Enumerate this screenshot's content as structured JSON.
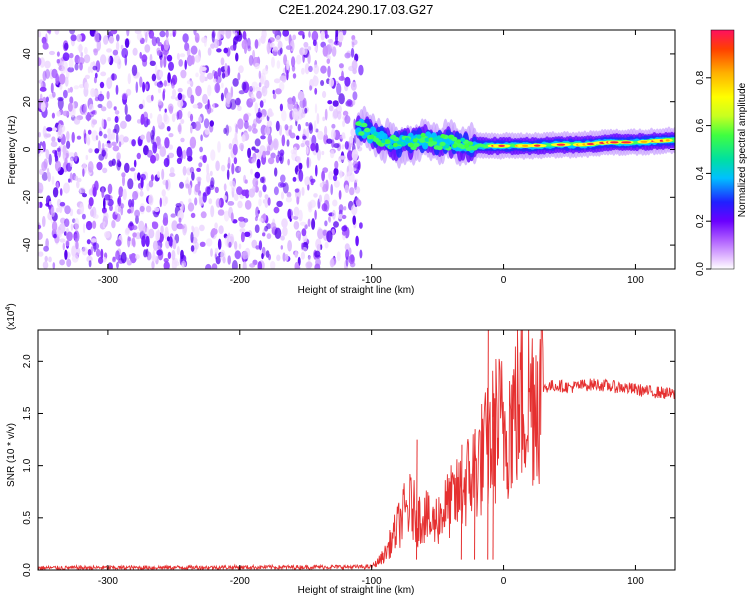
{
  "figure_title": "C2E1.2024.290.17.03.G27",
  "colors": {
    "signal_line": "#e53030",
    "axis": "#000000",
    "background": "#ffffff",
    "colormap": [
      "#ffffff",
      "#e8c8ff",
      "#b060ff",
      "#6a00ff",
      "#2020ff",
      "#00c0ff",
      "#00e0a0",
      "#40ff40",
      "#c8ff20",
      "#ffff00",
      "#ffb000",
      "#ff4000",
      "#ff1060"
    ]
  },
  "chart_data": [
    {
      "type": "heatmap",
      "name": "spectrogram",
      "title": "C2E1.2024.290.17.03.G27",
      "xlabel": "Height of straight line (km)",
      "ylabel": "Frequency (Hz)",
      "xlim": [
        -353,
        130
      ],
      "ylim": [
        -50,
        50
      ],
      "xticks": [
        -300,
        -200,
        -100,
        0,
        100
      ],
      "xtick_labels": [
        "-300",
        "-200",
        "-100",
        "0",
        "100"
      ],
      "yticks": [
        -40,
        -20,
        0,
        20,
        40
      ],
      "ytick_labels": [
        "-40",
        "-20",
        "0",
        "20",
        "40"
      ],
      "noise_region_x": [
        -353,
        -108
      ],
      "ridge_x": [
        -110,
        -100,
        -90,
        -80,
        -70,
        -60,
        -50,
        -40,
        -30,
        -20,
        -10,
        0,
        20,
        40,
        60,
        80,
        100,
        130
      ],
      "ridge_freq": [
        10,
        6,
        4,
        2,
        3,
        4,
        3,
        3,
        2,
        1.5,
        1.5,
        1.5,
        1.5,
        2,
        2,
        3,
        3,
        4
      ],
      "colorbar": {
        "label": "Normalized spectral amplitude",
        "range": [
          0,
          1
        ],
        "ticks": [
          0.0,
          0.2,
          0.4,
          0.6,
          0.8
        ],
        "tick_labels": [
          "0.0",
          "0.2",
          "0.4",
          "0.6",
          "0.8"
        ]
      }
    },
    {
      "type": "line",
      "name": "snr",
      "xlabel": "Height of straight line (km)",
      "ylabel": "SNR (10 * v/v)",
      "y_multiplier": "(x10",
      "y_multiplier_exp": "4",
      "y_multiplier_close": ")",
      "xlim": [
        -353,
        130
      ],
      "ylim": [
        0,
        2.3
      ],
      "xticks": [
        -300,
        -200,
        -100,
        0,
        100
      ],
      "xtick_labels": [
        "-300",
        "-200",
        "-100",
        "0",
        "100"
      ],
      "yticks": [
        0.0,
        0.5,
        1.0,
        1.5,
        2.0
      ],
      "ytick_labels": [
        "0.0",
        "0.5",
        "1.0",
        "1.5",
        "2.0"
      ],
      "series": [
        {
          "name": "SNR",
          "x": [
            -353,
            -100,
            -95,
            -90,
            -85,
            -80,
            -75,
            -70,
            -65,
            -60,
            -55,
            -50,
            -45,
            -40,
            -35,
            -30,
            -25,
            -20,
            -15,
            -10,
            -5,
            0,
            5,
            10,
            15,
            20,
            25,
            30,
            40,
            50,
            60,
            70,
            80,
            90,
            100,
            110,
            120,
            130
          ],
          "y": [
            0.02,
            0.03,
            0.08,
            0.15,
            0.28,
            0.42,
            0.55,
            0.62,
            0.48,
            0.55,
            0.42,
            0.5,
            0.58,
            0.65,
            0.7,
            0.8,
            0.9,
            1.0,
            1.1,
            1.2,
            1.4,
            1.35,
            1.45,
            1.55,
            1.6,
            1.68,
            1.72,
            1.75,
            1.77,
            1.75,
            1.77,
            1.78,
            1.76,
            1.75,
            1.73,
            1.71,
            1.7,
            1.68
          ]
        }
      ],
      "spikes": [
        {
          "x": -66,
          "y": 1.25
        },
        {
          "x": -32,
          "y": 1.2
        },
        {
          "x": -22,
          "y": 1.35
        },
        {
          "x": -12,
          "y": 2.3
        },
        {
          "x": -8,
          "y": 1.55
        }
      ]
    }
  ]
}
